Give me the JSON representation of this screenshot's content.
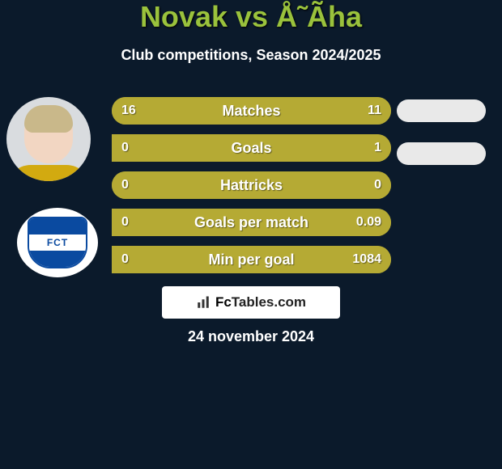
{
  "header": {
    "title": "Novak vs Å˜Ãha",
    "subtitle": "Club competitions, Season 2024/2025",
    "title_color": "#9ac23c",
    "subtitle_color": "#ffffff"
  },
  "background_color": "#0b1a2b",
  "stats": {
    "bar_bg_color": "#aba02f",
    "bar_fill_color": "#b5aa34",
    "text_color": "#ffffff",
    "rows": [
      {
        "label": "Matches",
        "left": "16",
        "right": "11",
        "left_pct": 59,
        "right_pct": 41
      },
      {
        "label": "Goals",
        "left": "0",
        "right": "1",
        "left_pct": 0,
        "right_pct": 100
      },
      {
        "label": "Hattricks",
        "left": "0",
        "right": "0",
        "left_pct": 50,
        "right_pct": 50
      },
      {
        "label": "Goals per match",
        "left": "0",
        "right": "0.09",
        "left_pct": 0,
        "right_pct": 100
      },
      {
        "label": "Min per goal",
        "left": "0",
        "right": "1084",
        "left_pct": 0,
        "right_pct": 100
      }
    ]
  },
  "pills": {
    "bg_color": "#e9e9e9"
  },
  "players": {
    "p1": {
      "avatar_bg": "#d9dcdf",
      "hair_color": "#c9b88a",
      "skin_color": "#f2d6c2",
      "shirt_color": "#d2aa10"
    },
    "p2": {
      "avatar_bg": "#ffffff",
      "shield_primary": "#0a4aa0",
      "shield_text": "FCT"
    }
  },
  "footer": {
    "site_label_prefix": "Fc",
    "site_label_suffix": "Tables.com",
    "date": "24 november 2024",
    "box_bg": "#ffffff",
    "text_color": "#222222"
  }
}
